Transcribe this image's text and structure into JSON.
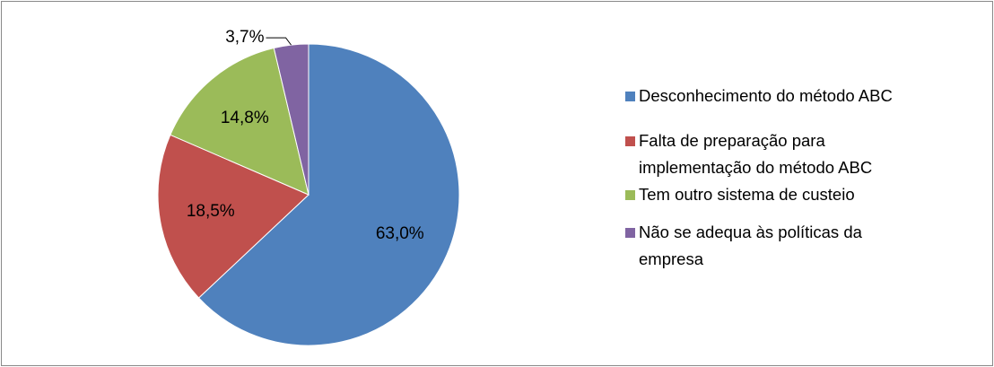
{
  "chart_data": {
    "type": "pie",
    "categories": [
      "Desconhecimento do método ABC",
      "Falta de preparação para implementação do método ABC",
      "Tem outro sistema de custeio",
      "Não se adequa às políticas da empresa"
    ],
    "values": [
      63.0,
      18.5,
      14.8,
      3.7
    ],
    "value_labels": [
      "63,0%",
      "18,5%",
      "14,8%",
      "3,7%"
    ],
    "colors": [
      "#4f81bd",
      "#c0504d",
      "#9bbb59",
      "#8064a2"
    ],
    "legend": "right"
  }
}
